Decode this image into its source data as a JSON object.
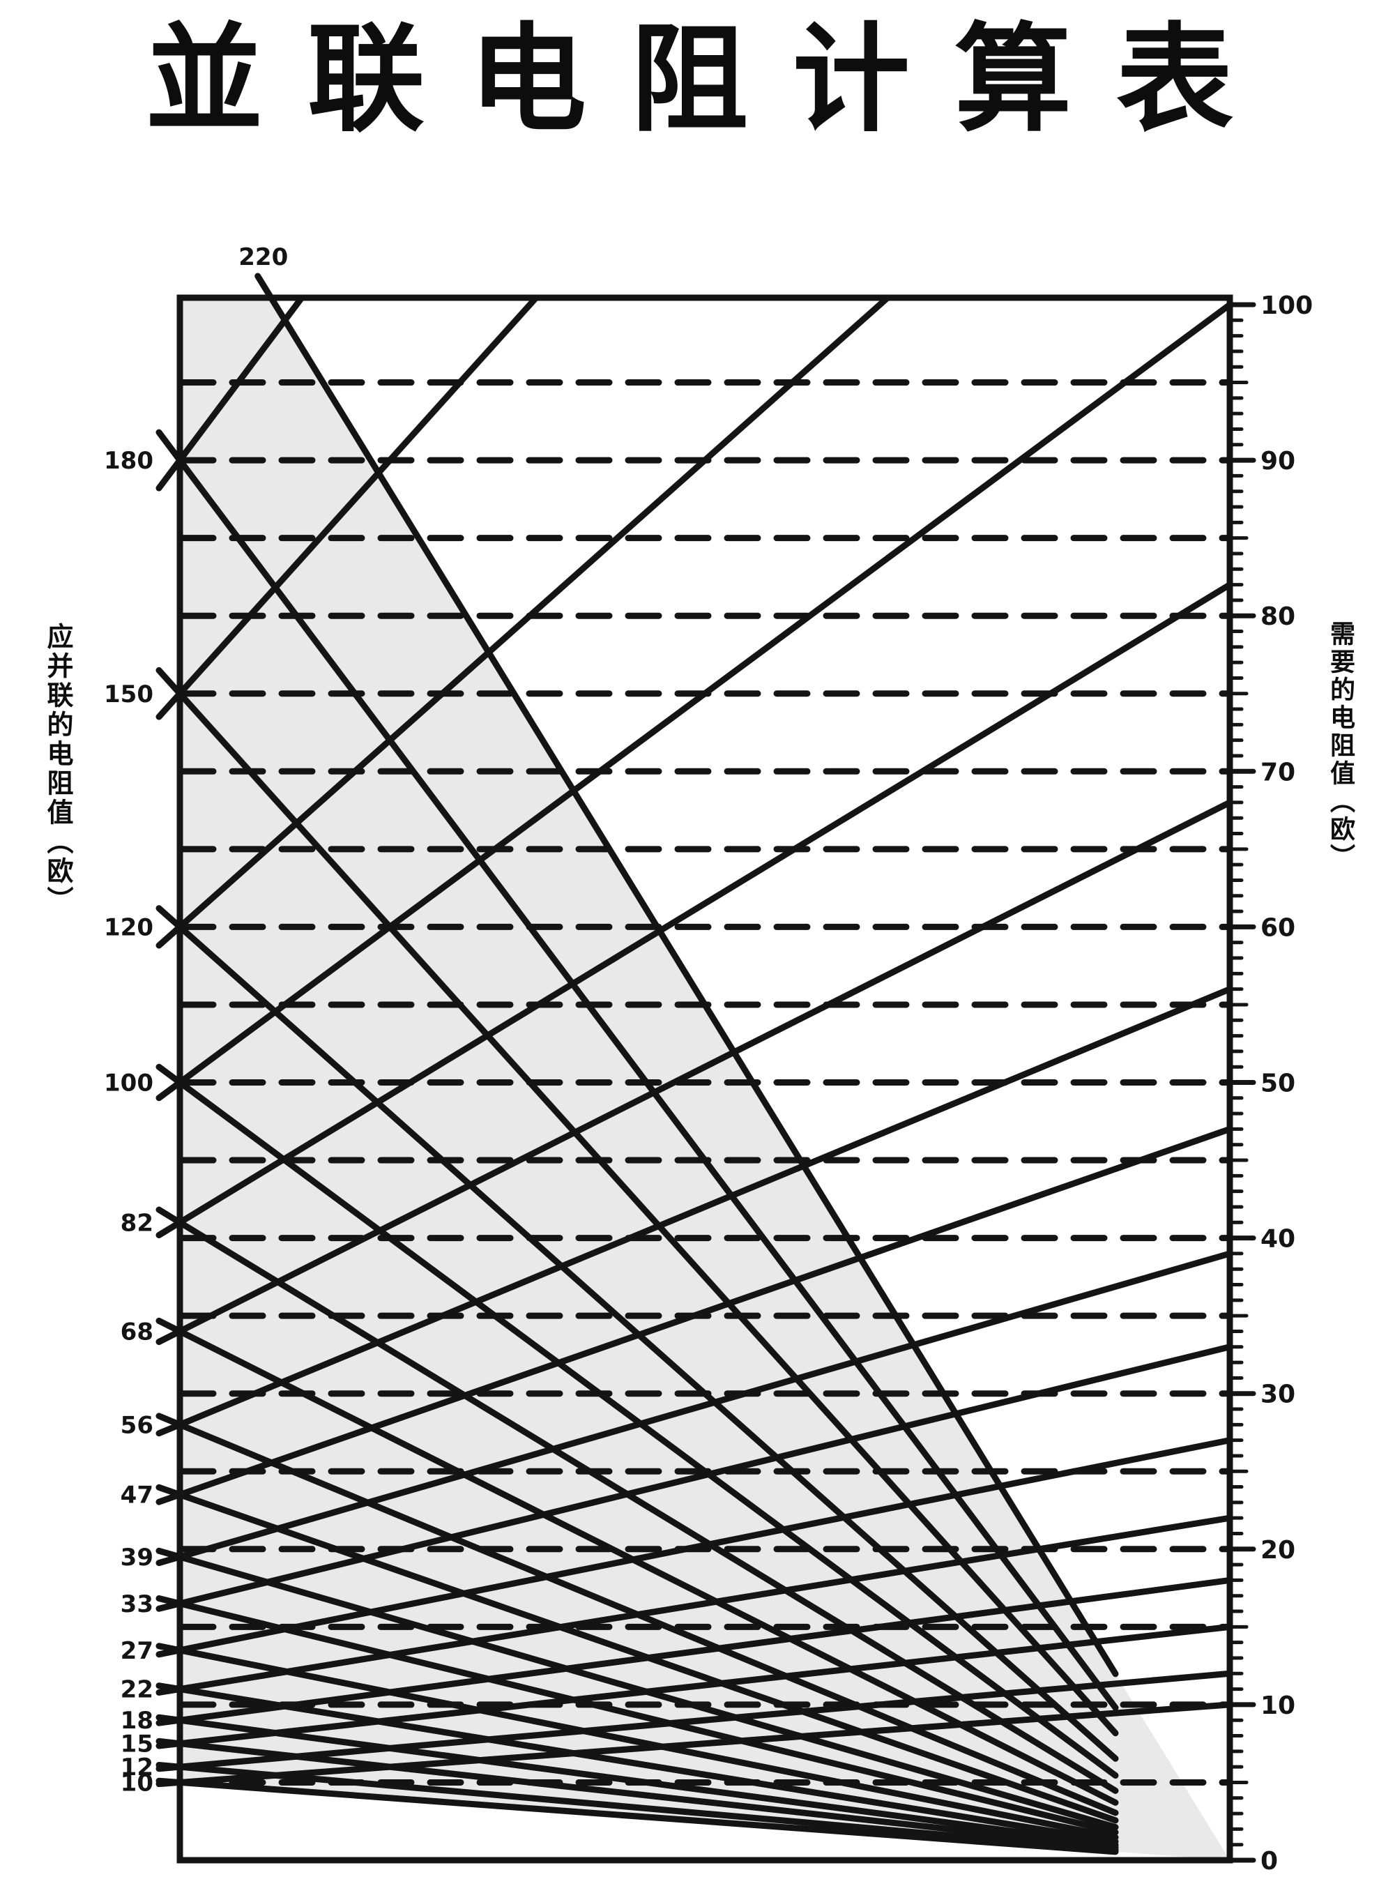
{
  "title": "並联电阻计算表",
  "left_axis": {
    "label": "应并联的电阻值（欧）",
    "values": [
      220,
      180,
      150,
      120,
      100,
      82,
      68,
      56,
      47,
      39,
      33,
      27,
      22,
      18,
      15,
      12,
      10
    ]
  },
  "right_axis": {
    "label": "需要的电阻值（欧）",
    "min": 0,
    "max": 100,
    "major_step": 10,
    "minor_step": 1,
    "labels": [
      100,
      90,
      80,
      70,
      60,
      50,
      40,
      30,
      20,
      10,
      0
    ]
  },
  "colors": {
    "ink": "#141414",
    "paper": "#ffffff",
    "shade": "#d7d7d7"
  },
  "chart_data": {
    "type": "nomogram",
    "title": "並联电阻计算表",
    "resistor_values": [
      10,
      12,
      15,
      18,
      22,
      27,
      33,
      39,
      47,
      56,
      68,
      82,
      100,
      120,
      150,
      180,
      220
    ],
    "left_scale": {
      "label": "应并联的电阻值（欧）",
      "labeled_values": [
        220,
        180,
        150,
        120,
        100,
        82,
        68,
        56,
        47,
        39,
        33,
        27,
        22,
        18,
        15,
        12,
        10
      ],
      "mark_height_rule": "each value v is marked at height v/2 in right-axis units"
    },
    "right_scale": {
      "label": "需要的电阻值（欧）",
      "min": 0,
      "max": 100,
      "major_tick": 10,
      "minor_tick": 1,
      "tick_labels": [
        0,
        10,
        20,
        30,
        40,
        50,
        60,
        70,
        80,
        90,
        100
      ]
    },
    "line_families": [
      {
        "name": "descending",
        "rule": "from left mark at v/2 to right-axis zero (bottom-right corner)",
        "values": [
          10,
          12,
          15,
          18,
          22,
          27,
          33,
          39,
          47,
          56,
          68,
          82,
          100,
          120,
          150,
          180,
          220
        ]
      },
      {
        "name": "ascending",
        "rule": "from left mark at v/2 to right axis at v (clipped at top for 120, 150, 180; 220 above frame)",
        "values": [
          10,
          12,
          15,
          18,
          22,
          27,
          33,
          39,
          47,
          56,
          68,
          82,
          100,
          120,
          150,
          180
        ]
      }
    ],
    "dashed_gridlines_at": [
      5,
      10,
      15,
      20,
      25,
      30,
      35,
      40,
      45,
      50,
      55,
      60,
      65,
      70,
      75,
      80,
      85,
      90,
      95
    ],
    "top_exterior_label": "220",
    "legend_position": "none",
    "grid": "dashed horizontals every 5 units of right scale"
  }
}
